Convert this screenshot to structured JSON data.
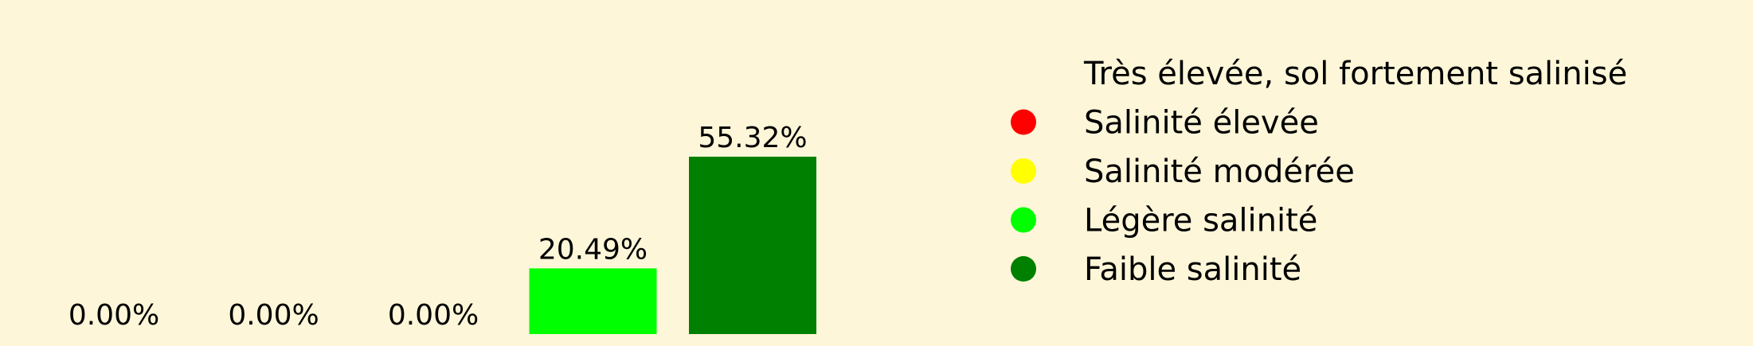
{
  "chart_data": {
    "type": "bar",
    "categories": [
      "Très élevée, sol fortement salinisé",
      "Salinité élevée",
      "Salinité modérée",
      "Légère salinité",
      "Faible salinité"
    ],
    "values": [
      0.0,
      0.0,
      0.0,
      20.49,
      55.32
    ],
    "value_labels": [
      "0.00%",
      "0.00%",
      "0.00%",
      "20.49%",
      "55.32%"
    ],
    "colors": [
      "#8b0000",
      "#ff0000",
      "#ffff00",
      "#00ff00",
      "#008000"
    ],
    "ylim": [
      0,
      60
    ],
    "legend": {
      "placement": "right",
      "entries": [
        {
          "label": "Très élevée, sol fortement salinisé",
          "color": "#8b0000",
          "marker_visible": false
        },
        {
          "label": "Salinité élevée",
          "color": "#ff0000",
          "marker_visible": true
        },
        {
          "label": "Salinité modérée",
          "color": "#ffff00",
          "marker_visible": true
        },
        {
          "label": "Légère salinité",
          "color": "#00ff00",
          "marker_visible": true
        },
        {
          "label": "Faible salinité",
          "color": "#008000",
          "marker_visible": true
        }
      ]
    },
    "background": "#fdf6d8",
    "grid": false,
    "axes_visible": false
  }
}
